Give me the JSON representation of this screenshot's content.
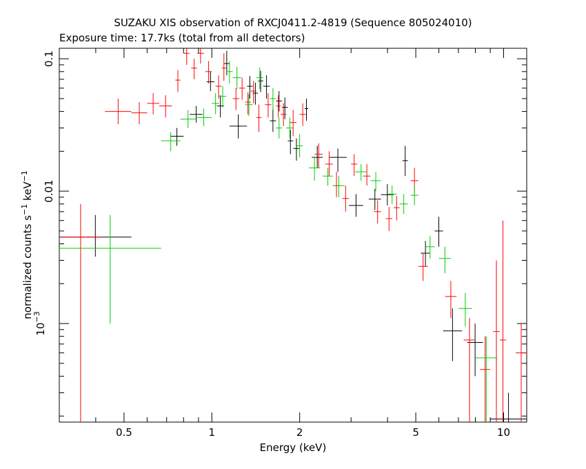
{
  "chart_data": {
    "type": "scatter",
    "title": "SUZAKU XIS observation of RXCJ0411.2-4819 (Sequence 805024010)",
    "subtitle": "Exposure time: 17.7ks (total from all detectors)",
    "xlabel": "Energy (keV)",
    "ylabel": {
      "base": "normalized counts s",
      "exp1": "−1",
      "mid": " keV",
      "exp2": "−1"
    },
    "x_scale": "log",
    "y_scale": "log",
    "xlim": [
      0.3,
      12
    ],
    "ylim": [
      0.00018,
      0.12
    ],
    "x_ticks": [
      {
        "v": 0.5,
        "label": "0.5"
      },
      {
        "v": 1,
        "label": "1"
      },
      {
        "v": 2,
        "label": "2"
      },
      {
        "v": 5,
        "label": "5"
      },
      {
        "v": 10,
        "label": "10"
      }
    ],
    "y_ticks": [
      {
        "v": 0.1,
        "label": "0.1"
      },
      {
        "v": 0.01,
        "label": "0.01"
      },
      {
        "v": 0.001,
        "label": "10",
        "exp": "−3"
      }
    ],
    "grid": false,
    "series": [
      {
        "color": "#000000",
        "points": [
          [
            0.3,
            0.53,
            0.0045,
            0.0066,
            0.0032
          ],
          [
            0.72,
            0.8,
            0.026,
            0.03,
            0.022
          ],
          [
            0.84,
            0.93,
            0.038,
            0.044,
            0.033
          ],
          [
            0.96,
            1.02,
            0.067,
            0.08,
            0.057
          ],
          [
            1.04,
            1.1,
            0.044,
            0.053,
            0.036
          ],
          [
            1.1,
            1.15,
            0.092,
            0.115,
            0.075
          ],
          [
            1.15,
            1.32,
            0.031,
            0.038,
            0.025
          ],
          [
            1.32,
            1.38,
            0.062,
            0.074,
            0.05
          ],
          [
            1.38,
            1.44,
            0.055,
            0.066,
            0.045
          ],
          [
            1.44,
            1.5,
            0.068,
            0.081,
            0.056
          ],
          [
            1.5,
            1.58,
            0.062,
            0.075,
            0.05
          ],
          [
            1.58,
            1.66,
            0.034,
            0.042,
            0.028
          ],
          [
            1.66,
            1.74,
            0.048,
            0.057,
            0.04
          ],
          [
            1.74,
            1.82,
            0.043,
            0.051,
            0.035
          ],
          [
            1.82,
            1.9,
            0.024,
            0.029,
            0.019
          ],
          [
            1.9,
            2.0,
            0.021,
            0.025,
            0.017
          ],
          [
            2.08,
            2.14,
            0.042,
            0.05,
            0.034
          ],
          [
            2.2,
            2.4,
            0.018,
            0.022,
            0.015
          ],
          [
            2.52,
            2.9,
            0.018,
            0.021,
            0.014
          ],
          [
            2.95,
            3.3,
            0.0078,
            0.0095,
            0.0064
          ],
          [
            3.45,
            3.8,
            0.0087,
            0.0104,
            0.0072
          ],
          [
            3.8,
            4.2,
            0.0094,
            0.0113,
            0.0078
          ],
          [
            4.5,
            4.7,
            0.017,
            0.022,
            0.013
          ],
          [
            5.2,
            5.6,
            0.0034,
            0.0042,
            0.0027
          ],
          [
            5.8,
            6.2,
            0.005,
            0.0064,
            0.0038
          ],
          [
            6.2,
            7.2,
            0.00088,
            0.0013,
            0.00052
          ],
          [
            7.5,
            8.5,
            0.00072,
            0.001,
            0.0004
          ],
          [
            9.0,
            12.0,
            0.00019,
            0.0003,
            0.00018
          ]
        ]
      },
      {
        "color": "#ff0000",
        "points": [
          [
            0.3,
            0.42,
            0.0045,
            0.008,
            0.00018
          ],
          [
            0.43,
            0.53,
            0.04,
            0.05,
            0.032
          ],
          [
            0.53,
            0.6,
            0.039,
            0.047,
            0.032
          ],
          [
            0.6,
            0.66,
            0.046,
            0.055,
            0.038
          ],
          [
            0.66,
            0.73,
            0.044,
            0.053,
            0.036
          ],
          [
            0.75,
            0.78,
            0.069,
            0.082,
            0.056
          ],
          [
            0.8,
            0.84,
            0.11,
            0.125,
            0.09
          ],
          [
            0.85,
            0.89,
            0.085,
            0.1,
            0.07
          ],
          [
            0.89,
            0.94,
            0.11,
            0.12,
            0.092
          ],
          [
            0.95,
            1.0,
            0.08,
            0.096,
            0.065
          ],
          [
            1.03,
            1.08,
            0.062,
            0.075,
            0.05
          ],
          [
            1.08,
            1.12,
            0.085,
            0.11,
            0.068
          ],
          [
            1.18,
            1.24,
            0.05,
            0.06,
            0.041
          ],
          [
            1.24,
            1.3,
            0.06,
            0.072,
            0.049
          ],
          [
            1.3,
            1.36,
            0.047,
            0.056,
            0.038
          ],
          [
            1.36,
            1.42,
            0.057,
            0.068,
            0.046
          ],
          [
            1.42,
            1.48,
            0.036,
            0.045,
            0.028
          ],
          [
            1.52,
            1.6,
            0.045,
            0.055,
            0.036
          ],
          [
            1.66,
            1.72,
            0.044,
            0.053,
            0.036
          ],
          [
            1.72,
            1.8,
            0.038,
            0.046,
            0.031
          ],
          [
            1.85,
            1.95,
            0.033,
            0.041,
            0.026
          ],
          [
            2.0,
            2.1,
            0.038,
            0.046,
            0.031
          ],
          [
            2.25,
            2.4,
            0.019,
            0.023,
            0.015
          ],
          [
            2.45,
            2.6,
            0.016,
            0.02,
            0.013
          ],
          [
            2.6,
            2.75,
            0.011,
            0.014,
            0.009
          ],
          [
            2.8,
            2.95,
            0.0088,
            0.011,
            0.007
          ],
          [
            3.0,
            3.15,
            0.016,
            0.019,
            0.013
          ],
          [
            3.3,
            3.5,
            0.013,
            0.016,
            0.011
          ],
          [
            3.6,
            3.8,
            0.007,
            0.0085,
            0.0057
          ],
          [
            3.95,
            4.15,
            0.0062,
            0.0076,
            0.005
          ],
          [
            4.2,
            4.4,
            0.0075,
            0.0092,
            0.006
          ],
          [
            4.8,
            5.1,
            0.012,
            0.015,
            0.0096
          ],
          [
            5.1,
            5.5,
            0.0027,
            0.0034,
            0.0021
          ],
          [
            6.3,
            6.9,
            0.0016,
            0.0021,
            0.0011
          ],
          [
            7.3,
            8.0,
            0.00075,
            0.0011,
            0.00018
          ],
          [
            8.3,
            9.0,
            0.00045,
            0.0008,
            0.00018
          ],
          [
            9.2,
            9.7,
            0.00087,
            0.003,
            0.00018
          ],
          [
            9.7,
            10.2,
            0.00075,
            0.006,
            0.00018
          ],
          [
            11.0,
            12.0,
            0.0006,
            0.001,
            0.00018
          ]
        ]
      },
      {
        "color": "#00cc00",
        "points": [
          [
            0.3,
            0.67,
            0.0037,
            0.0066,
            0.001
          ],
          [
            0.67,
            0.78,
            0.024,
            0.028,
            0.02
          ],
          [
            0.78,
            0.88,
            0.035,
            0.041,
            0.03
          ],
          [
            0.88,
            1.0,
            0.036,
            0.042,
            0.031
          ],
          [
            1.0,
            1.06,
            0.046,
            0.055,
            0.038
          ],
          [
            1.06,
            1.12,
            0.052,
            0.062,
            0.043
          ],
          [
            1.12,
            1.18,
            0.08,
            0.096,
            0.065
          ],
          [
            1.18,
            1.26,
            0.072,
            0.087,
            0.059
          ],
          [
            1.3,
            1.38,
            0.045,
            0.054,
            0.037
          ],
          [
            1.42,
            1.5,
            0.072,
            0.086,
            0.059
          ],
          [
            1.58,
            1.66,
            0.05,
            0.06,
            0.041
          ],
          [
            1.66,
            1.74,
            0.03,
            0.036,
            0.025
          ],
          [
            1.8,
            1.9,
            0.03,
            0.036,
            0.025
          ],
          [
            1.95,
            2.05,
            0.022,
            0.027,
            0.018
          ],
          [
            2.15,
            2.35,
            0.015,
            0.018,
            0.012
          ],
          [
            2.4,
            2.6,
            0.013,
            0.015,
            0.011
          ],
          [
            2.6,
            2.85,
            0.011,
            0.013,
            0.009
          ],
          [
            3.1,
            3.4,
            0.014,
            0.016,
            0.012
          ],
          [
            3.5,
            3.8,
            0.012,
            0.014,
            0.01
          ],
          [
            4.0,
            4.3,
            0.0095,
            0.011,
            0.008
          ],
          [
            4.4,
            4.7,
            0.008,
            0.0095,
            0.0067
          ],
          [
            4.8,
            5.1,
            0.0093,
            0.011,
            0.0078
          ],
          [
            5.4,
            5.8,
            0.0038,
            0.0046,
            0.0031
          ],
          [
            6.0,
            6.6,
            0.0031,
            0.0038,
            0.0024
          ],
          [
            7.0,
            7.8,
            0.0013,
            0.0017,
            0.00095
          ],
          [
            8.0,
            9.5,
            0.00055,
            0.0008,
            0.00018
          ]
        ]
      }
    ]
  }
}
